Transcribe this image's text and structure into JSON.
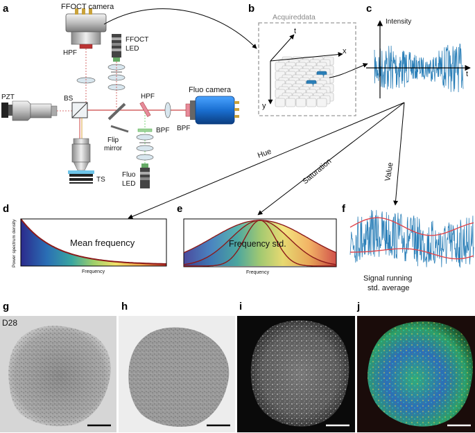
{
  "panels": {
    "a": "a",
    "b": "b",
    "c": "c",
    "d": "d",
    "e": "e",
    "f": "f",
    "g": "g",
    "h": "h",
    "i": "i",
    "j": "j"
  },
  "setup": {
    "ffoct_camera": "FFOCT camera",
    "hpf_top": "HPF",
    "ffoct_led_1": "FFOCT",
    "ffoct_led_2": "LED",
    "fluo_camera": "Fluo camera",
    "pzt": "PZT",
    "bs": "BS",
    "hpf_right": "HPF",
    "bpf_right": "BPF",
    "bpf_lower": "BPF",
    "flip_1": "Flip",
    "flip_2": "mirror",
    "ts": "TS",
    "fluo_led_1": "Fluo",
    "fluo_led_2": "LED"
  },
  "acquired": {
    "title": "Acquireddata",
    "axis_t": "t",
    "axis_x": "x",
    "axis_y": "y"
  },
  "signal": {
    "axis_intensity": "Intensity",
    "axis_t": "t"
  },
  "arrows": {
    "hue": "Hue",
    "saturation": "Saturation",
    "value": "Value"
  },
  "spectrum": {
    "ylabel": "Power spectrum density",
    "xlabel": "Frequency",
    "mean_label": "Mean frequency"
  },
  "std_panel": {
    "xlabel": "Frequency",
    "label": "Frequency std."
  },
  "running": {
    "label_1": "Signal running",
    "label_2": "std. average"
  },
  "images": {
    "g_label": "D28"
  },
  "colors": {
    "signal_blue": "#2a7fb8",
    "envelope_red": "#e0454c",
    "curve_darkred": "#8b1a1a",
    "fluo_camera_blue": "#1a6fd1"
  }
}
